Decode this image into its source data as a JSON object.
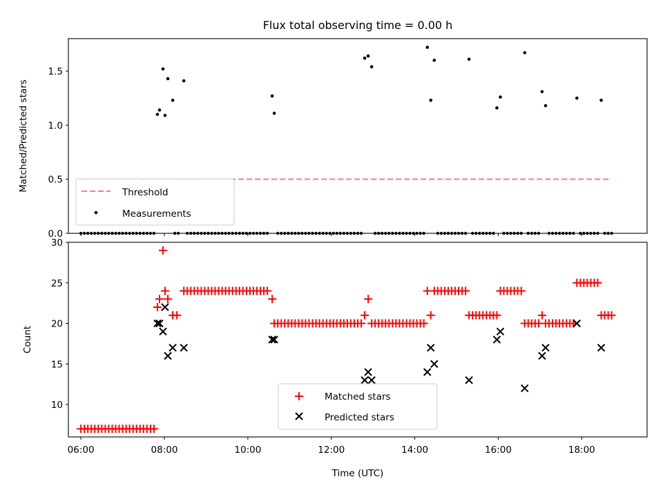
{
  "figure": {
    "title": "Flux total observing time = 0.00 h",
    "xlabel": "Time (UTC)"
  },
  "chart_data": [
    {
      "type": "scatter",
      "ylabel": "Matched/Predicted stars",
      "xlim": [
        "05:42",
        "19:34"
      ],
      "ylim": [
        0,
        1.8
      ],
      "yticks": [
        "0.0",
        "0.5",
        "1.0",
        "1.5"
      ],
      "xticks": [
        "06:00",
        "08:00",
        "10:00",
        "12:00",
        "14:00",
        "16:00",
        "18:00"
      ],
      "threshold": {
        "label": "Threshold",
        "value": 0.5,
        "x_range": [
          "06:00",
          "18:40"
        ],
        "color": "#ff7777"
      },
      "measurements": {
        "label": "Measurements",
        "color": "#000000",
        "points": [
          [
            "07:50",
            1.1
          ],
          [
            "07:53",
            1.14
          ],
          [
            "07:58",
            1.52
          ],
          [
            "08:01",
            1.09
          ],
          [
            "08:05",
            1.43
          ],
          [
            "08:12",
            1.23
          ],
          [
            "08:28",
            1.41
          ],
          [
            "10:35",
            1.27
          ],
          [
            "10:38",
            1.11
          ],
          [
            "12:48",
            1.62
          ],
          [
            "12:53",
            1.64
          ],
          [
            "12:58",
            1.54
          ],
          [
            "14:18",
            1.72
          ],
          [
            "14:23",
            1.23
          ],
          [
            "14:28",
            1.6
          ],
          [
            "15:18",
            1.61
          ],
          [
            "15:58",
            1.16
          ],
          [
            "16:03",
            1.26
          ],
          [
            "16:38",
            1.67
          ],
          [
            "17:03",
            1.31
          ],
          [
            "17:08",
            1.18
          ],
          [
            "17:53",
            1.25
          ],
          [
            "18:28",
            1.23
          ]
        ],
        "zero_ranges": [
          [
            "06:00",
            "07:46"
          ],
          [
            "08:15",
            "08:20"
          ],
          [
            "08:33",
            "10:30"
          ],
          [
            "10:43",
            "12:43"
          ],
          [
            "13:03",
            "14:13"
          ],
          [
            "14:33",
            "15:13"
          ],
          [
            "15:23",
            "15:53"
          ],
          [
            "16:08",
            "16:33"
          ],
          [
            "16:43",
            "16:58"
          ],
          [
            "17:13",
            "17:48"
          ],
          [
            "17:58",
            "18:23"
          ],
          [
            "18:33",
            "18:43"
          ]
        ]
      }
    },
    {
      "type": "scatter",
      "ylabel": "Count",
      "xlim": [
        "05:42",
        "19:34"
      ],
      "ylim": [
        6,
        30
      ],
      "yticks": [
        "10",
        "15",
        "20",
        "25",
        "30"
      ],
      "xticks": [
        "06:00",
        "08:00",
        "10:00",
        "12:00",
        "14:00",
        "16:00",
        "18:00"
      ],
      "series": [
        {
          "name": "Matched stars",
          "marker": "+",
          "color": "#ff0000",
          "runs": [
            {
              "from": "06:00",
              "to": "07:46",
              "value": 7
            },
            {
              "from": "08:33",
              "to": "10:30",
              "value": 24
            },
            {
              "from": "10:43",
              "to": "12:43",
              "value": 20
            },
            {
              "from": "13:03",
              "to": "14:13",
              "value": 20
            },
            {
              "from": "14:33",
              "to": "15:13",
              "value": 24
            },
            {
              "from": "15:23",
              "to": "15:53",
              "value": 21
            },
            {
              "from": "16:08",
              "to": "16:33",
              "value": 24
            },
            {
              "from": "16:43",
              "to": "16:58",
              "value": 20
            },
            {
              "from": "17:13",
              "to": "17:48",
              "value": 20
            },
            {
              "from": "17:58",
              "to": "18:23",
              "value": 25
            },
            {
              "from": "18:33",
              "to": "18:43",
              "value": 21
            }
          ],
          "points": [
            [
              "07:50",
              22
            ],
            [
              "07:53",
              23
            ],
            [
              "07:58",
              29
            ],
            [
              "08:01",
              24
            ],
            [
              "08:05",
              23
            ],
            [
              "08:12",
              21
            ],
            [
              "08:18",
              21
            ],
            [
              "08:28",
              24
            ],
            [
              "10:35",
              23
            ],
            [
              "10:38",
              20
            ],
            [
              "12:48",
              21
            ],
            [
              "12:53",
              23
            ],
            [
              "12:58",
              20
            ],
            [
              "14:18",
              24
            ],
            [
              "14:23",
              21
            ],
            [
              "14:28",
              24
            ],
            [
              "15:18",
              21
            ],
            [
              "15:58",
              21
            ],
            [
              "16:03",
              24
            ],
            [
              "16:38",
              20
            ],
            [
              "17:03",
              21
            ],
            [
              "17:08",
              20
            ],
            [
              "17:53",
              25
            ],
            [
              "18:28",
              21
            ]
          ]
        },
        {
          "name": "Predicted stars",
          "marker": "x",
          "color": "#000000",
          "points": [
            [
              "07:50",
              20
            ],
            [
              "07:53",
              20
            ],
            [
              "07:58",
              19
            ],
            [
              "08:01",
              22
            ],
            [
              "08:05",
              16
            ],
            [
              "08:12",
              17
            ],
            [
              "08:28",
              17
            ],
            [
              "10:35",
              18
            ],
            [
              "10:38",
              18
            ],
            [
              "12:48",
              13
            ],
            [
              "12:53",
              14
            ],
            [
              "12:58",
              13
            ],
            [
              "14:18",
              14
            ],
            [
              "14:23",
              17
            ],
            [
              "14:28",
              15
            ],
            [
              "15:18",
              13
            ],
            [
              "15:58",
              18
            ],
            [
              "16:03",
              19
            ],
            [
              "16:38",
              12
            ],
            [
              "17:03",
              16
            ],
            [
              "17:08",
              17
            ],
            [
              "17:53",
              20
            ],
            [
              "18:28",
              17
            ]
          ]
        }
      ]
    }
  ]
}
